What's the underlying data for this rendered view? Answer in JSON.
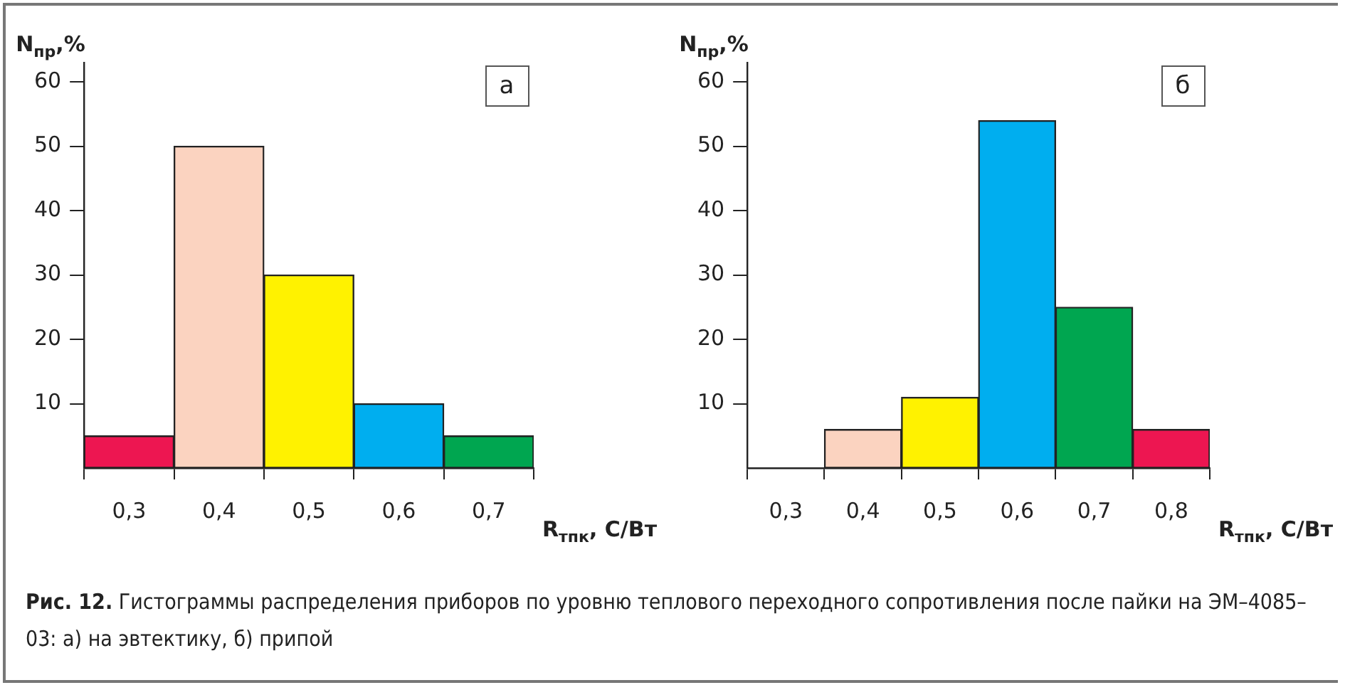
{
  "chart_data": [
    {
      "type": "bar",
      "title": "а",
      "xlabel": "R$_{тпк}$, С/Вт",
      "ylabel": "N$_{пр}$,%",
      "categories": [
        "0,3",
        "0,4",
        "0,5",
        "0,6",
        "0,7"
      ],
      "values": [
        5,
        50,
        30,
        10,
        5
      ],
      "colors": [
        "#ed1651",
        "#fbd3c0",
        "#fff200",
        "#00aeef",
        "#00a650"
      ],
      "ylim": [
        0,
        63
      ],
      "yticks": [
        10,
        20,
        30,
        40,
        50,
        60
      ],
      "grid": false,
      "legend": false,
      "annotations": [
        "Рис. 12. Гистограммы распределения приборов по уровню теплового переходного сопротивления после пайки на ЭМ–4085–03: а) на эвтектику, б) припой"
      ]
    },
    {
      "type": "bar",
      "title": "б",
      "xlabel": "R$_{тпк}$, С/Вт",
      "ylabel": "N$_{пр}$,%",
      "categories": [
        "0,3",
        "0,4",
        "0,5",
        "0,6",
        "0,7",
        "0,8"
      ],
      "values": [
        0,
        6,
        11,
        54,
        25,
        6
      ],
      "colors": [
        "#ffffff",
        "#fbd3c0",
        "#fff200",
        "#00aeef",
        "#00a650",
        "#ed1651"
      ],
      "ylim": [
        0,
        63
      ],
      "yticks": [
        10,
        20,
        30,
        40,
        50,
        60
      ],
      "grid": false,
      "legend": false
    }
  ]
}
